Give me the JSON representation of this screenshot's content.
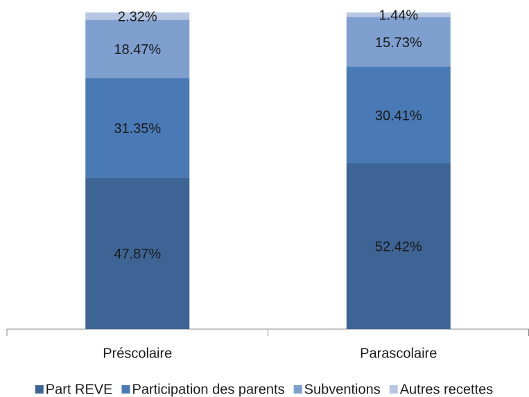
{
  "chart_data": {
    "type": "stacked_bar",
    "categories": [
      "Préscolaire",
      "Parascolaire"
    ],
    "series": [
      {
        "name": "Part REVE",
        "color": "#3d6494",
        "values": [
          47.87,
          52.42
        ],
        "value_labels": [
          "47.87%",
          "52.42%"
        ]
      },
      {
        "name": "Participation des parents",
        "color": "#4a7ab5",
        "values": [
          31.35,
          30.41
        ],
        "value_labels": [
          "31.35%",
          "30.41%"
        ]
      },
      {
        "name": "Subventions",
        "color": "#7f9fcf",
        "values": [
          18.47,
          15.73
        ],
        "value_labels": [
          "18.47%",
          "15.73%"
        ]
      },
      {
        "name": "Autres recettes",
        "color": "#b7c6e3",
        "values": [
          2.32,
          1.44
        ],
        "value_labels": [
          "2.32%",
          "1.44%"
        ]
      }
    ],
    "legend": "bottom"
  }
}
